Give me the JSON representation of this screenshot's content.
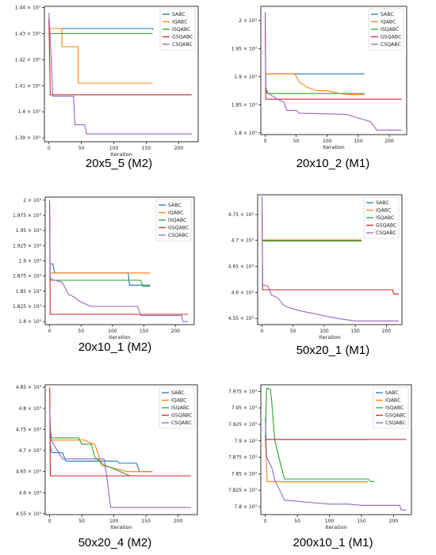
{
  "colors": {
    "SABC": "#1f77b4",
    "IQABC": "#ff7f0e",
    "ISQABC": "#2ca02c",
    "GSQABC": "#d62728",
    "CSQABC": "#9467bd"
  },
  "chart_data": [
    {
      "type": "line",
      "caption": "20x5_5 (M2)",
      "xlabel": "Iteration",
      "xticks": [
        0,
        50,
        100,
        150,
        200
      ],
      "xlim": [
        -7,
        230
      ],
      "ylim": [
        1388.5,
        1440.5
      ],
      "yticks": [
        {
          "v": 1390,
          "label": "1.39 × 10³"
        },
        {
          "v": 1400,
          "label": "1.4 × 10³"
        },
        {
          "v": 1410,
          "label": "1.41 × 10³"
        },
        {
          "v": 1420,
          "label": "1.42 × 10³"
        },
        {
          "v": 1430,
          "label": "1.43 × 10³"
        },
        {
          "v": 1440,
          "label": "1.44 × 10³"
        }
      ],
      "legend_position": "top-right",
      "series": [
        {
          "name": "SABC",
          "points": [
            [
              0,
              1432
            ],
            [
              160,
              1432
            ],
            [
              160,
              1431.5
            ]
          ]
        },
        {
          "name": "IQABC",
          "points": [
            [
              0,
              1432
            ],
            [
              20,
              1432
            ],
            [
              20,
              1425
            ],
            [
              45,
              1425
            ],
            [
              45,
              1411
            ],
            [
              160,
              1411
            ]
          ]
        },
        {
          "name": "ISQABC",
          "points": [
            [
              0,
              1430
            ],
            [
              160,
              1430
            ]
          ]
        },
        {
          "name": "GSQABC",
          "points": [
            [
              0,
              1436
            ],
            [
              2,
              1406.5
            ],
            [
              220,
              1406.5
            ]
          ]
        },
        {
          "name": "CSQABC",
          "points": [
            [
              0,
              1438
            ],
            [
              2,
              1428
            ],
            [
              4,
              1418
            ],
            [
              6,
              1406
            ],
            [
              38,
              1406
            ],
            [
              40,
              1395
            ],
            [
              55,
              1395
            ],
            [
              58,
              1391.5
            ],
            [
              220,
              1391.5
            ]
          ]
        }
      ]
    },
    {
      "type": "line",
      "caption": "20x10_2 (M1)",
      "xlabel": "Iteration",
      "xticks": [
        0,
        50,
        100,
        150,
        200
      ],
      "xlim": [
        -7,
        228
      ],
      "ylim": [
        1797,
        2025
      ],
      "yticks": [
        {
          "v": 1800,
          "label": "1.8 × 10³"
        },
        {
          "v": 1850,
          "label": "1.85 × 10³"
        },
        {
          "v": 1900,
          "label": "1.9 × 10³"
        },
        {
          "v": 1950,
          "label": "1.95 × 10³"
        },
        {
          "v": 2000,
          "label": "2 × 10³"
        }
      ],
      "legend_position": "top-right",
      "series": [
        {
          "name": "SABC",
          "points": [
            [
              0,
              1905
            ],
            [
              160,
              1905
            ]
          ]
        },
        {
          "name": "IQABC",
          "points": [
            [
              0,
              1905
            ],
            [
              48,
              1905
            ],
            [
              55,
              1890
            ],
            [
              70,
              1880
            ],
            [
              85,
              1875
            ],
            [
              100,
              1875
            ],
            [
              120,
              1870
            ],
            [
              140,
              1868
            ],
            [
              160,
              1868
            ]
          ]
        },
        {
          "name": "ISQABC",
          "points": [
            [
              0,
              1880
            ],
            [
              3,
              1870
            ],
            [
              160,
              1870
            ]
          ]
        },
        {
          "name": "GSQABC",
          "points": [
            [
              0,
              2010
            ],
            [
              1,
              1860
            ],
            [
              220,
              1860
            ]
          ]
        },
        {
          "name": "CSQABC",
          "points": [
            [
              0,
              2015
            ],
            [
              1,
              1880
            ],
            [
              5,
              1870
            ],
            [
              20,
              1860
            ],
            [
              30,
              1855
            ],
            [
              35,
              1840
            ],
            [
              50,
              1840
            ],
            [
              55,
              1835
            ],
            [
              130,
              1833
            ],
            [
              170,
              1820
            ],
            [
              180,
              1805
            ],
            [
              220,
              1805
            ]
          ]
        }
      ]
    },
    {
      "type": "line",
      "caption": "20x10_1 (M2)",
      "xlabel": "Iteration",
      "xticks": [
        0,
        50,
        100,
        150,
        200
      ],
      "xlim": [
        -7,
        230
      ],
      "ylim": [
        1795,
        2005
      ],
      "yticks": [
        {
          "v": 1800,
          "label": "1.8 × 10³"
        },
        {
          "v": 1825,
          "label": "1.825 × 10³"
        },
        {
          "v": 1850,
          "label": "1.85 × 10³"
        },
        {
          "v": 1875,
          "label": "1.875 × 10³"
        },
        {
          "v": 1900,
          "label": "1.9 × 10³"
        },
        {
          "v": 1925,
          "label": "1.925 × 10³"
        },
        {
          "v": 1950,
          "label": "1.95 × 10³"
        },
        {
          "v": 1975,
          "label": "1.975 × 10³"
        },
        {
          "v": 2000,
          "label": "2 × 10³"
        }
      ],
      "legend_position": "top-right",
      "series": [
        {
          "name": "SABC",
          "points": [
            [
              0,
              1895
            ],
            [
              5,
              1895
            ],
            [
              8,
              1880
            ],
            [
              125,
              1880
            ],
            [
              127,
              1860
            ],
            [
              160,
              1860
            ]
          ]
        },
        {
          "name": "IQABC",
          "points": [
            [
              0,
              1880
            ],
            [
              160,
              1880
            ]
          ]
        },
        {
          "name": "ISQABC",
          "points": [
            [
              0,
              1875
            ],
            [
              3,
              1868
            ],
            [
              145,
              1868
            ],
            [
              148,
              1858
            ],
            [
              160,
              1858
            ]
          ]
        },
        {
          "name": "GSQABC",
          "points": [
            [
              0,
              1995
            ],
            [
              1,
              1812
            ],
            [
              220,
              1812
            ]
          ]
        },
        {
          "name": "CSQABC",
          "points": [
            [
              0,
              2000
            ],
            [
              1,
              1870
            ],
            [
              20,
              1865
            ],
            [
              30,
              1845
            ],
            [
              40,
              1840
            ],
            [
              45,
              1835
            ],
            [
              55,
              1830
            ],
            [
              65,
              1825
            ],
            [
              100,
              1825
            ],
            [
              140,
              1825
            ],
            [
              145,
              1810
            ],
            [
              210,
              1810
            ],
            [
              212,
              1800
            ],
            [
              220,
              1800
            ]
          ]
        }
      ]
    },
    {
      "type": "line",
      "caption": "50x20_1 (M1)",
      "xlabel": "Iteration",
      "xticks": [
        0,
        50,
        100,
        150,
        200
      ],
      "xlim": [
        -7,
        225
      ],
      "ylim": [
        4538,
        4788
      ],
      "yticks": [
        {
          "v": 4550,
          "label": "4.55 × 10³"
        },
        {
          "v": 4600,
          "label": "4.6 × 10³"
        },
        {
          "v": 4650,
          "label": "4.65 × 10³"
        },
        {
          "v": 4700,
          "label": "4.7 × 10³"
        },
        {
          "v": 4750,
          "label": "4.75 × 10³"
        }
      ],
      "legend_position": "top-right",
      "series": [
        {
          "name": "SABC",
          "points": [
            [
              0,
              4700
            ],
            [
              160,
              4700
            ]
          ]
        },
        {
          "name": "IQABC",
          "points": [
            [
              0,
              4701
            ],
            [
              160,
              4701
            ]
          ]
        },
        {
          "name": "ISQABC",
          "points": [
            [
              0,
              4699
            ],
            [
              160,
              4699
            ]
          ]
        },
        {
          "name": "GSQABC",
          "points": [
            [
              0,
              4780
            ],
            [
              1,
              4605
            ],
            [
              210,
              4605
            ],
            [
              212,
              4597
            ],
            [
              220,
              4597
            ]
          ]
        },
        {
          "name": "CSQABC",
          "points": [
            [
              0,
              4785
            ],
            [
              1,
              4615
            ],
            [
              10,
              4612
            ],
            [
              15,
              4595
            ],
            [
              25,
              4590
            ],
            [
              35,
              4575
            ],
            [
              45,
              4570
            ],
            [
              60,
              4565
            ],
            [
              80,
              4560
            ],
            [
              100,
              4555
            ],
            [
              120,
              4550
            ],
            [
              150,
              4545
            ],
            [
              220,
              4545
            ]
          ]
        }
      ]
    },
    {
      "type": "line",
      "caption": "50x20_4 (M2)",
      "xlabel": "Iteration",
      "xticks": [
        0,
        50,
        100,
        150,
        200
      ],
      "xlim": [
        -7,
        230
      ],
      "ylim": [
        4548,
        4856
      ],
      "yticks": [
        {
          "v": 4550,
          "label": "4.55 × 10³"
        },
        {
          "v": 4600,
          "label": "4.6 × 10³"
        },
        {
          "v": 4650,
          "label": "4.65 × 10³"
        },
        {
          "v": 4700,
          "label": "4.7 × 10³"
        },
        {
          "v": 4750,
          "label": "4.75 × 10³"
        },
        {
          "v": 4800,
          "label": "4.8 × 10³"
        },
        {
          "v": 4850,
          "label": "4.85 × 10³"
        }
      ],
      "legend_position": "top-right",
      "series": [
        {
          "name": "SABC",
          "points": [
            [
              0,
              4720
            ],
            [
              3,
              4695
            ],
            [
              20,
              4695
            ],
            [
              25,
              4675
            ],
            [
              105,
              4675
            ],
            [
              108,
              4670
            ],
            [
              135,
              4670
            ],
            [
              140,
              4650
            ],
            [
              160,
              4650
            ]
          ]
        },
        {
          "name": "IQABC",
          "points": [
            [
              0,
              4730
            ],
            [
              2,
              4725
            ],
            [
              55,
              4725
            ],
            [
              60,
              4720
            ],
            [
              70,
              4715
            ],
            [
              75,
              4695
            ],
            [
              80,
              4665
            ],
            [
              95,
              4660
            ],
            [
              120,
              4650
            ],
            [
              160,
              4650
            ]
          ]
        },
        {
          "name": "ISQABC",
          "points": [
            [
              0,
              4760
            ],
            [
              3,
              4730
            ],
            [
              45,
              4730
            ],
            [
              50,
              4715
            ],
            [
              65,
              4715
            ],
            [
              70,
              4685
            ],
            [
              85,
              4665
            ],
            [
              95,
              4660
            ],
            [
              110,
              4650
            ],
            [
              125,
              4640
            ],
            [
              160,
              4640
            ]
          ]
        },
        {
          "name": "GSQABC",
          "points": [
            [
              0,
              4850
            ],
            [
              1,
              4640
            ],
            [
              220,
              4640
            ]
          ]
        },
        {
          "name": "CSQABC",
          "points": [
            [
              0,
              4800
            ],
            [
              2,
              4725
            ],
            [
              10,
              4705
            ],
            [
              20,
              4680
            ],
            [
              85,
              4680
            ],
            [
              90,
              4625
            ],
            [
              95,
              4565
            ],
            [
              220,
              4565
            ]
          ]
        }
      ]
    },
    {
      "type": "line",
      "caption": "200x10_1 (M1)",
      "xlabel": "Iteration",
      "xticks": [
        0,
        50,
        100,
        150,
        200
      ],
      "xlim": [
        -7,
        228
      ],
      "ylim": [
        7788,
        7985
      ],
      "yticks": [
        {
          "v": 7800,
          "label": "7.8 × 10³"
        },
        {
          "v": 7825,
          "label": "7.825 × 10³"
        },
        {
          "v": 7850,
          "label": "7.85 × 10³"
        },
        {
          "v": 7875,
          "label": "7.875 × 10³"
        },
        {
          "v": 7900,
          "label": "7.9 × 10³"
        },
        {
          "v": 7925,
          "label": "7.925 × 10³"
        },
        {
          "v": 7950,
          "label": "7.95 × 10³"
        },
        {
          "v": 7975,
          "label": "7.975 × 10³"
        }
      ],
      "legend_position": "top-right",
      "series": [
        {
          "name": "SABC",
          "points": [
            [
              0,
              7902
            ],
            [
              160,
              7902
            ]
          ]
        },
        {
          "name": "IQABC",
          "points": [
            [
              0,
              7902
            ],
            [
              3,
              7838
            ],
            [
              160,
              7838
            ]
          ]
        },
        {
          "name": "ISQABC",
          "points": [
            [
              0,
              7900
            ],
            [
              2,
              7980
            ],
            [
              8,
              7978
            ],
            [
              10,
              7960
            ],
            [
              15,
              7900
            ],
            [
              20,
              7880
            ],
            [
              25,
              7860
            ],
            [
              30,
              7842
            ],
            [
              160,
              7842
            ],
            [
              165,
              7838
            ],
            [
              170,
              7838
            ]
          ]
        },
        {
          "name": "GSQABC",
          "points": [
            [
              0,
              7902
            ],
            [
              220,
              7902
            ]
          ]
        },
        {
          "name": "CSQABC",
          "points": [
            [
              0,
              7935
            ],
            [
              2,
              7875
            ],
            [
              10,
              7860
            ],
            [
              15,
              7840
            ],
            [
              25,
              7820
            ],
            [
              30,
              7810
            ],
            [
              75,
              7806
            ],
            [
              100,
              7804
            ],
            [
              130,
              7804
            ],
            [
              150,
              7802
            ],
            [
              210,
              7802
            ],
            [
              212,
              7795
            ],
            [
              220,
              7795
            ]
          ]
        }
      ]
    }
  ]
}
